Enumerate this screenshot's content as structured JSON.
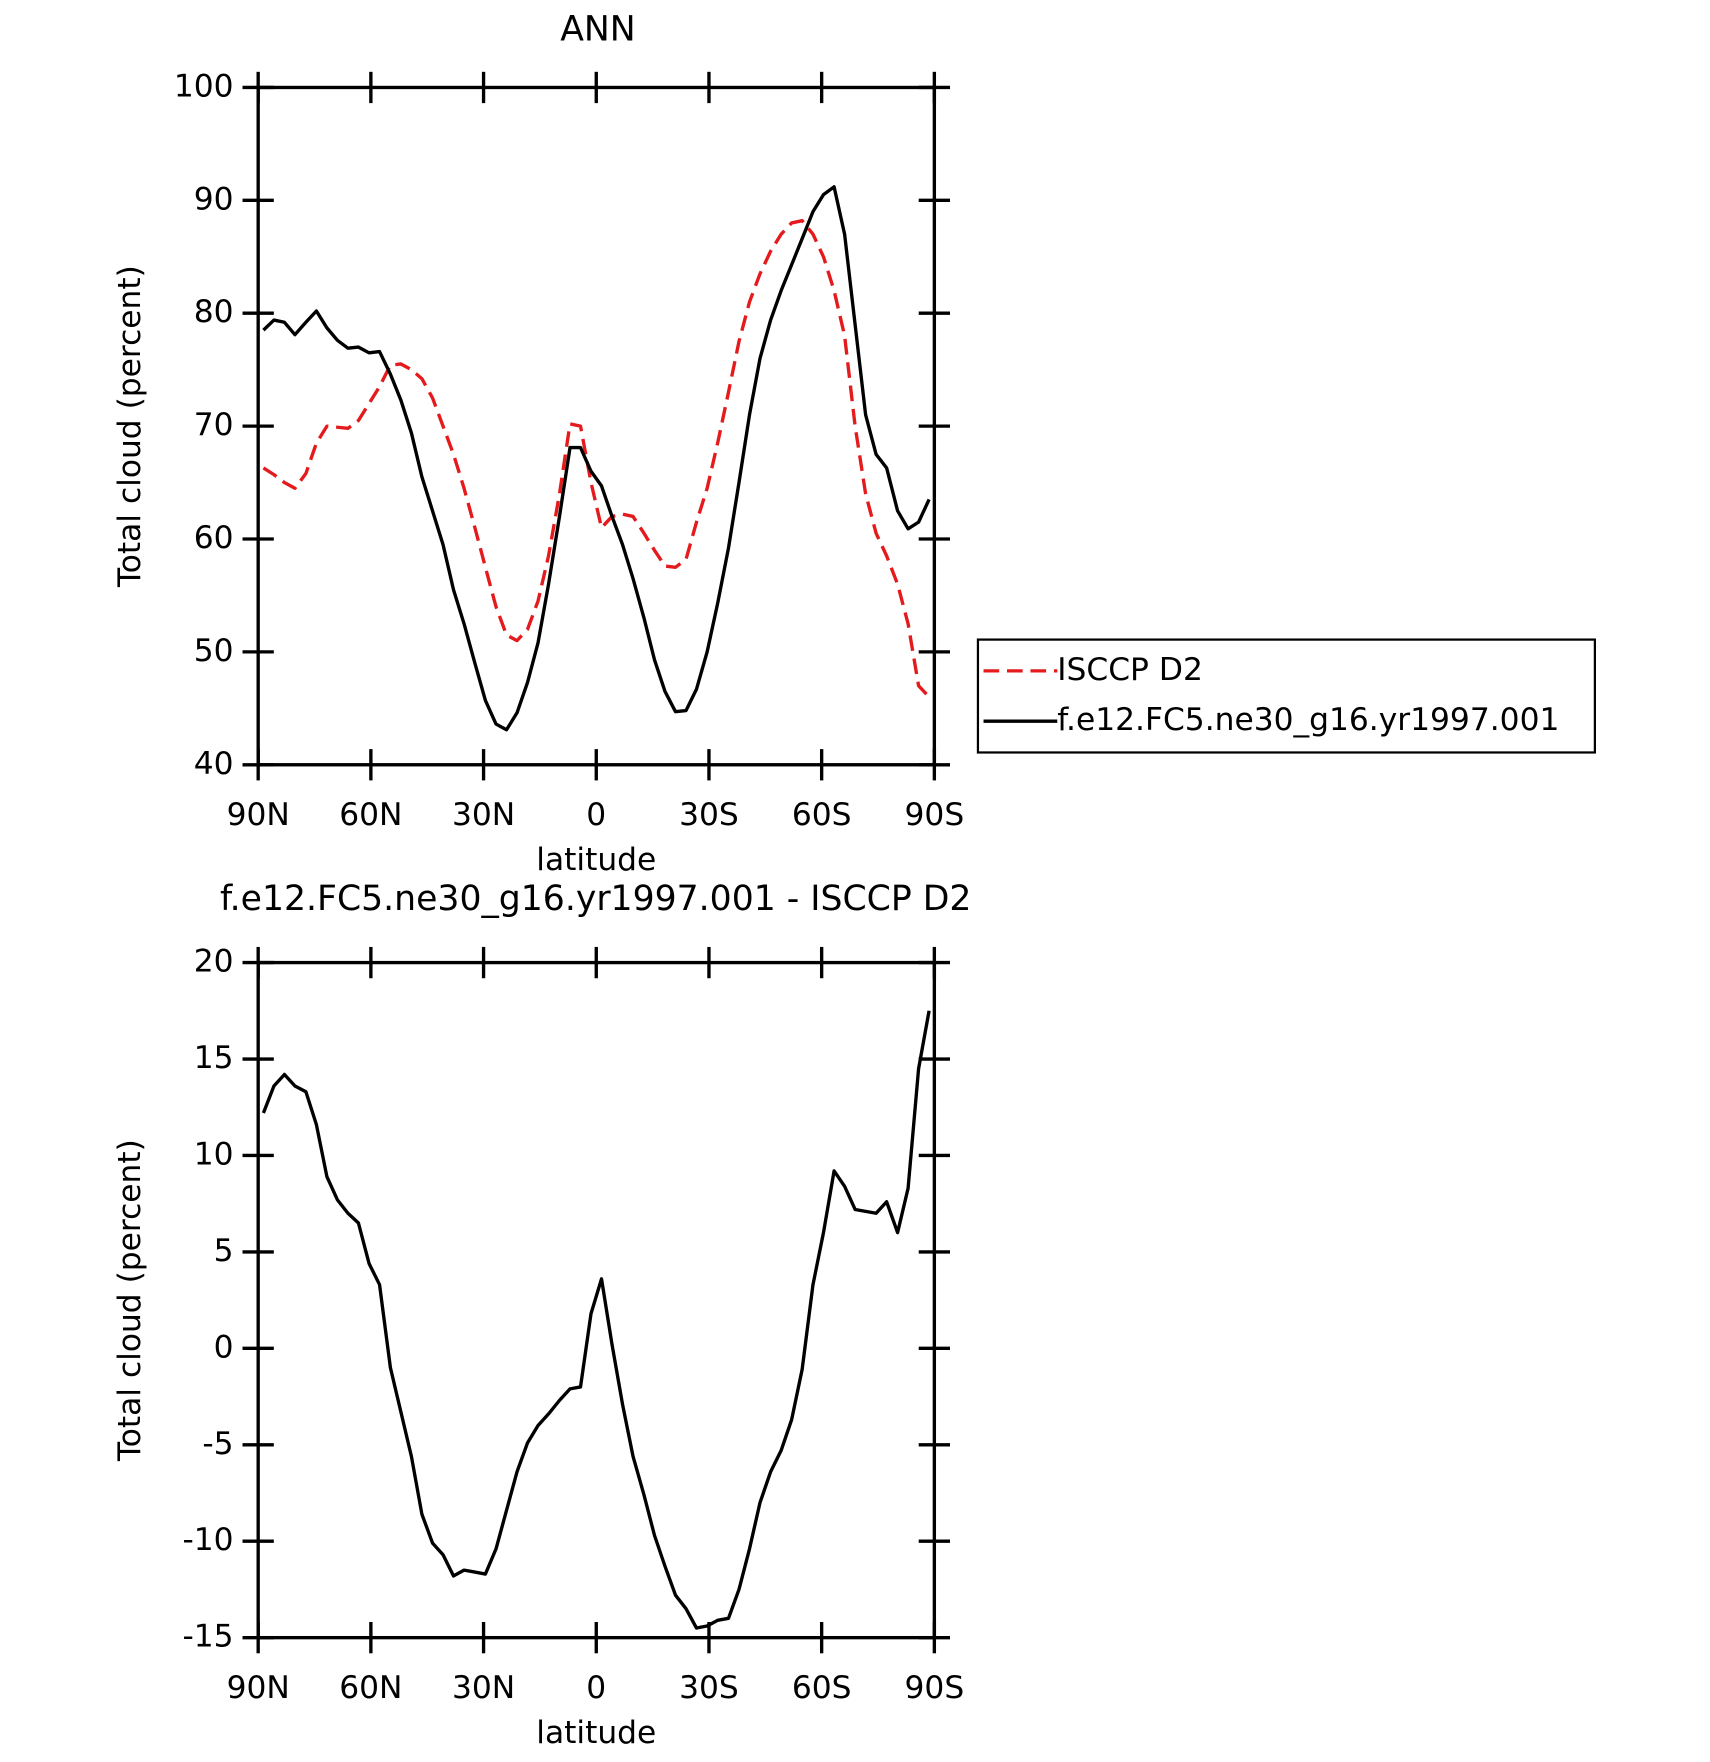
{
  "chart_data": [
    {
      "type": "line",
      "title": "ANN",
      "xlabel": "latitude",
      "ylabel": "Total cloud (percent)",
      "x": [
        88.6,
        85.8,
        83.0,
        80.2,
        77.3,
        74.5,
        71.7,
        68.9,
        66.1,
        63.3,
        60.5,
        57.7,
        54.8,
        52.0,
        49.2,
        46.4,
        43.6,
        40.8,
        38.0,
        35.2,
        32.3,
        29.5,
        26.7,
        23.9,
        21.1,
        18.3,
        15.5,
        12.7,
        9.8,
        7.0,
        4.2,
        1.4,
        -1.4,
        -4.2,
        -7.0,
        -9.8,
        -12.7,
        -15.5,
        -18.3,
        -21.1,
        -23.9,
        -26.7,
        -29.5,
        -32.3,
        -35.2,
        -38.0,
        -40.8,
        -43.6,
        -46.4,
        -49.2,
        -52.0,
        -54.8,
        -57.7,
        -60.5,
        -63.3,
        -66.1,
        -68.9,
        -71.7,
        -74.5,
        -77.3,
        -80.2,
        -83.0,
        -85.8,
        -88.6
      ],
      "xlim": [
        90,
        -90
      ],
      "xticks": [
        {
          "value": 90,
          "label": "90N"
        },
        {
          "value": 60,
          "label": "60N"
        },
        {
          "value": 30,
          "label": "30N"
        },
        0,
        {
          "value": -30,
          "label": "30S"
        },
        {
          "value": -60,
          "label": "60S"
        },
        {
          "value": -90,
          "label": "90S"
        }
      ],
      "ylim": [
        40,
        100
      ],
      "yticks": [
        40,
        50,
        60,
        70,
        80,
        90,
        100
      ],
      "legend": "right",
      "series": [
        {
          "name": "ISCCP D2",
          "color": "#e41a1c",
          "linestyle": "dashed",
          "values": [
            66.3,
            65.7,
            65.0,
            64.5,
            65.8,
            68.5,
            70.0,
            69.9,
            69.8,
            70.5,
            72.0,
            73.5,
            75.4,
            75.5,
            75.0,
            74.2,
            72.5,
            70.0,
            67.5,
            64.5,
            61.0,
            57.5,
            54.0,
            51.5,
            51.0,
            52.0,
            54.5,
            58.5,
            64.0,
            70.2,
            70.0,
            65.0,
            61.0,
            62.0,
            62.2,
            62.0,
            60.5,
            59.0,
            57.6,
            57.5,
            58.2,
            61.5,
            64.5,
            68.5,
            73.0,
            77.5,
            81.0,
            83.5,
            85.5,
            87.0,
            88.0,
            88.2,
            87.0,
            85.0,
            82.0,
            78.0,
            70.0,
            64.0,
            60.5,
            58.5,
            56.0,
            52.5,
            47.0,
            46.0
          ]
        },
        {
          "name": "f.e12.FC5.ne30_g16.yr1997.001",
          "color": "#000000",
          "linestyle": "solid",
          "values": [
            78.5,
            79.4,
            79.2,
            78.1,
            79.2,
            80.2,
            78.7,
            77.6,
            76.9,
            77.0,
            76.5,
            76.6,
            74.6,
            72.3,
            69.4,
            65.5,
            62.5,
            59.5,
            55.5,
            52.5,
            49.0,
            45.7,
            43.6,
            43.1,
            44.6,
            47.3,
            50.8,
            56.0,
            62.0,
            68.1,
            68.1,
            66.0,
            64.7,
            62.0,
            59.5,
            56.5,
            53.0,
            49.3,
            46.5,
            44.7,
            44.8,
            46.7,
            50.0,
            54.3,
            59.2,
            65.0,
            71.0,
            76.0,
            79.4,
            82.0,
            84.3,
            86.6,
            89.0,
            90.5,
            91.2,
            87.0,
            79.0,
            71.0,
            67.5,
            66.3,
            62.5,
            60.9,
            61.5,
            63.5
          ]
        }
      ]
    },
    {
      "type": "line",
      "title": "f.e12.FC5.ne30_g16.yr1997.001 - ISCCP D2",
      "xlabel": "latitude",
      "ylabel": "Total cloud (percent)",
      "x": [
        88.6,
        85.8,
        83.0,
        80.2,
        77.3,
        74.5,
        71.7,
        68.9,
        66.1,
        63.3,
        60.5,
        57.7,
        54.8,
        52.0,
        49.2,
        46.4,
        43.6,
        40.8,
        38.0,
        35.2,
        32.3,
        29.5,
        26.7,
        23.9,
        21.1,
        18.3,
        15.5,
        12.7,
        9.8,
        7.0,
        4.2,
        1.4,
        -1.4,
        -4.2,
        -7.0,
        -9.8,
        -12.7,
        -15.5,
        -18.3,
        -21.1,
        -23.9,
        -26.7,
        -29.5,
        -32.3,
        -35.2,
        -38.0,
        -40.8,
        -43.6,
        -46.4,
        -49.2,
        -52.0,
        -54.8,
        -57.7,
        -60.5,
        -63.3,
        -66.1,
        -68.9,
        -71.7,
        -74.5,
        -77.3,
        -80.2,
        -83.0,
        -85.8,
        -88.6
      ],
      "xlim": [
        90,
        -90
      ],
      "xticks": [
        {
          "value": 90,
          "label": "90N"
        },
        {
          "value": 60,
          "label": "60N"
        },
        {
          "value": 30,
          "label": "30N"
        },
        0,
        {
          "value": -30,
          "label": "30S"
        },
        {
          "value": -60,
          "label": "60S"
        },
        {
          "value": -90,
          "label": "90S"
        }
      ],
      "ylim": [
        -15,
        20
      ],
      "yticks": [
        -15,
        -10,
        -5,
        0,
        5,
        10,
        15,
        20
      ],
      "series": [
        {
          "color": "#000000",
          "linestyle": "solid",
          "values": [
            12.2,
            13.6,
            14.2,
            13.6,
            13.3,
            11.6,
            8.9,
            7.7,
            7.0,
            6.5,
            4.4,
            3.3,
            -1.0,
            -3.3,
            -5.6,
            -8.6,
            -10.1,
            -10.7,
            -11.8,
            -11.5,
            -11.6,
            -11.7,
            -10.4,
            -8.4,
            -6.4,
            -4.9,
            -4.0,
            -3.4,
            -2.7,
            -2.1,
            -2.0,
            1.8,
            3.6,
            0.2,
            -2.9,
            -5.6,
            -7.6,
            -9.7,
            -11.3,
            -12.8,
            -13.5,
            -14.5,
            -14.4,
            -14.1,
            -14.0,
            -12.5,
            -10.4,
            -8.0,
            -6.4,
            -5.3,
            -3.7,
            -1.1,
            3.3,
            6.0,
            9.2,
            8.4,
            7.2,
            7.1,
            7.0,
            7.6,
            6.0,
            8.3,
            14.5,
            17.5
          ]
        }
      ]
    }
  ]
}
